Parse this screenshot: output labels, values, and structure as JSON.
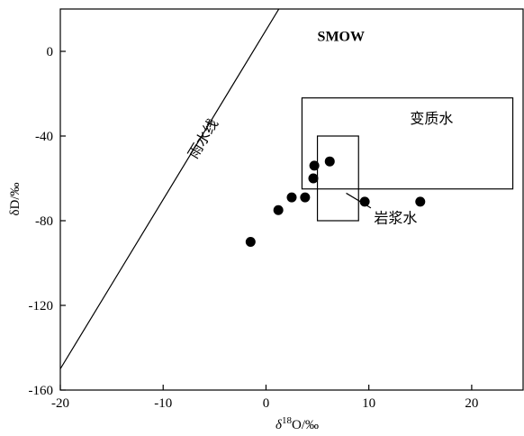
{
  "chart_data": {
    "type": "scatter",
    "xlabel": {
      "delta": "δ",
      "sup": "18",
      "rest": "O/‰"
    },
    "ylabel": "δD/‰",
    "xlim": [
      -20,
      25
    ],
    "ylim": [
      -160,
      20
    ],
    "xticks": [
      -20,
      -10,
      0,
      10,
      20
    ],
    "yticks": [
      0,
      -40,
      -80,
      -120,
      -160
    ],
    "grid": false,
    "legend": "none",
    "series": [
      {
        "points": [
          {
            "x": -1.5,
            "y": -90
          },
          {
            "x": 1.2,
            "y": -75
          },
          {
            "x": 2.5,
            "y": -69
          },
          {
            "x": 3.8,
            "y": -69
          },
          {
            "x": 4.6,
            "y": -60
          },
          {
            "x": 4.7,
            "y": -54
          },
          {
            "x": 6.2,
            "y": -52
          },
          {
            "x": 9.6,
            "y": -71
          },
          {
            "x": 15.0,
            "y": -71
          }
        ]
      }
    ],
    "meteoric_water_line": {
      "label": "雨水线",
      "slope": 8,
      "intercept": 10
    },
    "fields": [
      {
        "label": "变质水",
        "x": [
          3.5,
          24.0
        ],
        "y": [
          -65,
          -22
        ]
      },
      {
        "label": "岩浆水",
        "x": [
          5.0,
          9.0
        ],
        "y": [
          -80,
          -40
        ]
      }
    ],
    "annotations": [
      {
        "text": "SMOW",
        "x": 5.0,
        "y": 5
      }
    ]
  }
}
